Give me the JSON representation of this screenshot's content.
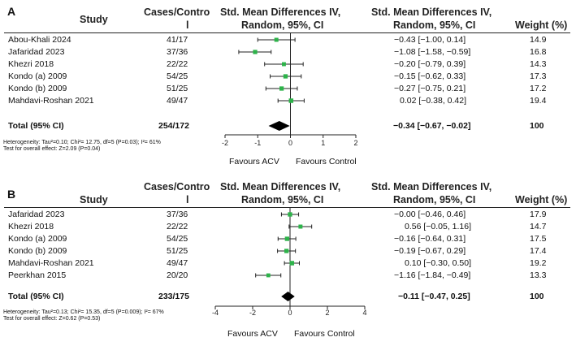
{
  "panels": [
    {
      "letter": "A",
      "headers": {
        "study": "Study",
        "cases_l1": "Cases/Contro",
        "cases_l2": "l",
        "plot_l1": "Std. Mean Differences IV,",
        "plot_l2": "Random, 95%, CI",
        "ci_l1": "Std. Mean Differences IV,",
        "ci_l2": "Random, 95%, CI",
        "weight": "Weight (%)"
      },
      "studies": [
        {
          "study": "Abou-Khali 2024",
          "cases": "41/17",
          "ci_text": "−0.43 [−1.00, 0.14]",
          "weight": "14.9",
          "smd": -0.43,
          "lo": -1.0,
          "hi": 0.14
        },
        {
          "study": "Jafaridad 2023",
          "cases": "37/36",
          "ci_text": "−1.08 [−1.58, −0.59]",
          "weight": "16.8",
          "smd": -1.08,
          "lo": -1.58,
          "hi": -0.59
        },
        {
          "study": "Khezri 2018",
          "cases": "22/22",
          "ci_text": "−0.20 [−0.79, 0.39]",
          "weight": "14.3",
          "smd": -0.2,
          "lo": -0.79,
          "hi": 0.39
        },
        {
          "study": "Kondo (a) 2009",
          "cases": "54/25",
          "ci_text": "−0.15 [−0.62, 0.33]",
          "weight": "17.3",
          "smd": -0.15,
          "lo": -0.62,
          "hi": 0.33
        },
        {
          "study": "Kondo (b) 2009",
          "cases": "51/25",
          "ci_text": "−0.27 [−0.75, 0.21]",
          "weight": "17.2",
          "smd": -0.27,
          "lo": -0.75,
          "hi": 0.21
        },
        {
          "study": "Mahdavi-Roshan 2021",
          "cases": "49/47",
          "ci_text": "0.02 [−0.38, 0.42]",
          "weight": "19.4",
          "smd": 0.02,
          "lo": -0.38,
          "hi": 0.42
        }
      ],
      "total": {
        "label": "Total (95% CI)",
        "cases": "254/172",
        "ci_text": "−0.34 [−0.67, −0.02]",
        "weight": "100",
        "smd": -0.34,
        "lo": -0.67,
        "hi": -0.02
      },
      "heterogeneity": "Heterogeneity: Tau²=0.10; Chi²= 12.75, df=5 (P=0.03); I²= 61%",
      "overall": "Test for overall effect: Z=2.09 (P=0.04)",
      "axis": {
        "min": -2,
        "max": 2,
        "ticks": [
          "-2",
          "-1",
          "0",
          "1",
          "2"
        ],
        "tick_values": [
          -2,
          -1,
          0,
          1,
          2
        ]
      },
      "favour_left": "Favours ACV",
      "favour_right": "Favours Control"
    },
    {
      "letter": "B",
      "headers": {
        "study": "Study",
        "cases_l1": "Cases/Contro",
        "cases_l2": "l",
        "plot_l1": "Std. Mean Differences IV,",
        "plot_l2": "Random, 95%, CI",
        "ci_l1": "Std. Mean Differences IV,",
        "ci_l2": "Random, 95%, CI",
        "weight": "Weight (%)"
      },
      "studies": [
        {
          "study": "Jafaridad 2023",
          "cases": "37/36",
          "ci_text": "−0.00 [−0.46, 0.46]",
          "weight": "17.9",
          "smd": 0.0,
          "lo": -0.46,
          "hi": 0.46
        },
        {
          "study": "Khezri 2018",
          "cases": "22/22",
          "ci_text": "0.56 [−0.05, 1.16]",
          "weight": "14.7",
          "smd": 0.56,
          "lo": -0.05,
          "hi": 1.16
        },
        {
          "study": "Kondo (a) 2009",
          "cases": "54/25",
          "ci_text": "−0.16 [−0.64, 0.31]",
          "weight": "17.5",
          "smd": -0.16,
          "lo": -0.64,
          "hi": 0.31
        },
        {
          "study": "Kondo (b) 2009",
          "cases": "51/25",
          "ci_text": "−0.19 [−0.67, 0.29]",
          "weight": "17.4",
          "smd": -0.19,
          "lo": -0.67,
          "hi": 0.29
        },
        {
          "study": "Mahdavi-Roshan 2021",
          "cases": "49/47",
          "ci_text": "0.10 [−0.30, 0.50]",
          "weight": "19.2",
          "smd": 0.1,
          "lo": -0.3,
          "hi": 0.5
        },
        {
          "study": "Peerkhan 2015",
          "cases": "20/20",
          "ci_text": "−1.16 [−1.84, −0.49]",
          "weight": "13.3",
          "smd": -1.16,
          "lo": -1.84,
          "hi": -0.49
        }
      ],
      "total": {
        "label": "Total (95% CI)",
        "cases": "233/175",
        "ci_text": "−0.11 [−0.47, 0.25]",
        "weight": "100",
        "smd": -0.11,
        "lo": -0.47,
        "hi": 0.25
      },
      "heterogeneity": "Heterogeneity: Tau²=0.13; Chi²= 15.35, df=5 (P=0.009); I²= 67%",
      "overall": "Test for overall effect: Z=0.62 (P=0.53)",
      "axis": {
        "min": -4,
        "max": 4,
        "ticks": [
          "-4",
          "-2",
          "0",
          "2",
          "4"
        ],
        "tick_values": [
          -4,
          -2,
          0,
          2,
          4
        ]
      },
      "favour_left": "Favours ACV",
      "favour_right": "Favours Control"
    }
  ],
  "colors": {
    "point": "#2db34a",
    "diamond": "#000000",
    "line": "#222222"
  },
  "chart_data": [
    {
      "type": "forest",
      "categories": [
        "Abou-Khali 2024",
        "Jafaridad 2023",
        "Khezri 2018",
        "Kondo (a) 2009",
        "Kondo (b) 2009",
        "Mahdavi-Roshan 2021",
        "Total (95% CI)"
      ],
      "values": [
        -0.43,
        -1.08,
        -0.2,
        -0.15,
        -0.27,
        0.02,
        -0.34
      ],
      "ci_low": [
        -1.0,
        -1.58,
        -0.79,
        -0.62,
        -0.75,
        -0.38,
        -0.67
      ],
      "ci_high": [
        0.14,
        -0.59,
        0.39,
        0.33,
        0.21,
        0.42,
        -0.02
      ],
      "weights": [
        14.9,
        16.8,
        14.3,
        17.3,
        17.2,
        19.4,
        100
      ],
      "title": "A",
      "xlim": [
        -2,
        2
      ]
    },
    {
      "type": "forest",
      "categories": [
        "Jafaridad 2023",
        "Khezri 2018",
        "Kondo (a) 2009",
        "Kondo (b) 2009",
        "Mahdavi-Roshan 2021",
        "Peerkhan 2015",
        "Total (95% CI)"
      ],
      "values": [
        0.0,
        0.56,
        -0.16,
        -0.19,
        0.1,
        -1.16,
        -0.11
      ],
      "ci_low": [
        -0.46,
        -0.05,
        -0.64,
        -0.67,
        -0.3,
        -1.84,
        -0.47
      ],
      "ci_high": [
        0.46,
        1.16,
        0.31,
        0.29,
        0.5,
        -0.49,
        0.25
      ],
      "weights": [
        17.9,
        14.7,
        17.5,
        17.4,
        19.2,
        13.3,
        100
      ],
      "title": "B",
      "xlim": [
        -4,
        4
      ]
    }
  ]
}
